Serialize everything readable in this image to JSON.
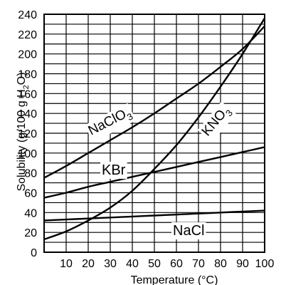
{
  "chart_data": {
    "type": "line",
    "xlabel": "Temperature (°C)",
    "ylabel": "Solubility (g/100 g H2O)",
    "ylabel_parts": {
      "pre": "Solubility (g/100 g H",
      "sub": "2",
      "post": "O)"
    },
    "xlim": [
      0,
      100
    ],
    "ylim": [
      0,
      240
    ],
    "x_ticks": [
      10,
      20,
      30,
      40,
      50,
      60,
      70,
      80,
      90,
      100
    ],
    "y_ticks": [
      0,
      20,
      40,
      60,
      80,
      100,
      120,
      140,
      160,
      180,
      200,
      220,
      240
    ],
    "grid": true,
    "series": [
      {
        "name": "NaClO3",
        "label_parts": {
          "pre": "NaClO",
          "sub": "3"
        },
        "x": [
          0,
          10,
          20,
          30,
          40,
          50,
          60,
          70,
          80,
          90,
          100
        ],
        "y": [
          75,
          87,
          100,
          113,
          126,
          140,
          155,
          170,
          187,
          205,
          228
        ]
      },
      {
        "name": "KNO3",
        "label_parts": {
          "pre": "KNO",
          "sub": "3"
        },
        "x": [
          0,
          10,
          20,
          30,
          40,
          50,
          60,
          70,
          80,
          90,
          100
        ],
        "y": [
          13,
          21,
          32,
          45,
          62,
          84,
          108,
          136,
          167,
          200,
          236
        ]
      },
      {
        "name": "KBr",
        "label_parts": {
          "pre": "KBr",
          "sub": ""
        },
        "x": [
          0,
          10,
          20,
          30,
          40,
          50,
          60,
          70,
          80,
          90,
          100
        ],
        "y": [
          55,
          60,
          66,
          71,
          76,
          81,
          86,
          91,
          96,
          101,
          106
        ]
      },
      {
        "name": "NaCl",
        "label_parts": {
          "pre": "NaCl",
          "sub": ""
        },
        "x": [
          0,
          10,
          20,
          30,
          40,
          50,
          60,
          70,
          80,
          90,
          100
        ],
        "y": [
          32,
          33,
          34,
          35,
          36,
          37,
          38,
          39,
          40,
          41,
          42
        ]
      }
    ]
  }
}
